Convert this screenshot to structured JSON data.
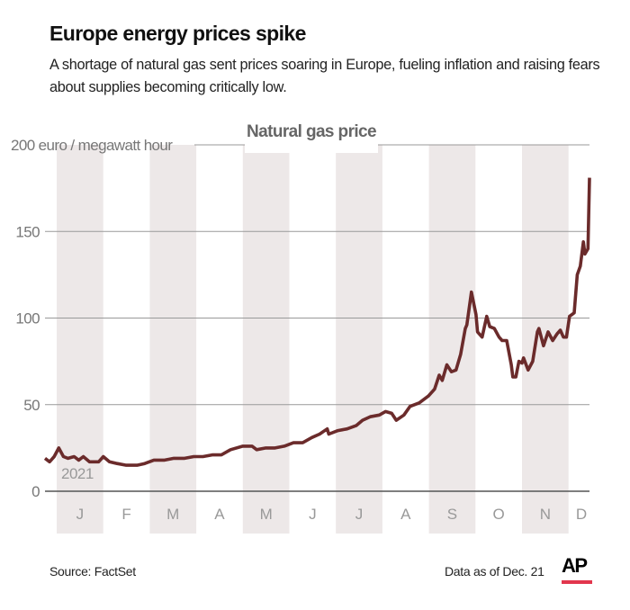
{
  "header": {
    "title": "Europe energy prices spike",
    "subtitle": "A shortage of natural gas sent prices soaring in Europe, fueling inflation and raising fears about supplies becoming critically low."
  },
  "footer": {
    "source": "Source: FactSet",
    "as_of": "Data as of Dec. 21",
    "logo": "AP"
  },
  "colors": {
    "line": "#6b2b2b",
    "band": "#ede8e8",
    "grid": "#999999",
    "text": "#777777",
    "logo_bar": "#e2364d"
  },
  "chart_data": {
    "type": "line",
    "title": "Natural gas price",
    "ylabel": "euro / megawatt hour",
    "y_ticks": [
      "200 euro / megawatt hour",
      "150",
      "100",
      "50",
      "0"
    ],
    "y_tick_values": [
      200,
      150,
      100,
      50,
      0
    ],
    "ylim": [
      0,
      200
    ],
    "xlim_days": [
      0,
      355
    ],
    "year_label": "2021",
    "months": [
      "J",
      "F",
      "M",
      "A",
      "M",
      "J",
      "J",
      "A",
      "S",
      "O",
      "N",
      "D"
    ],
    "shaded_months": [
      0,
      2,
      4,
      6,
      8,
      10
    ],
    "grid": true,
    "series": [
      {
        "name": "Natural gas price",
        "x_day_of_year": [
          0,
          3,
          6,
          9,
          12,
          15,
          19,
          22,
          25,
          29,
          35,
          38,
          42,
          47,
          53,
          60,
          65,
          71,
          78,
          84,
          91,
          97,
          103,
          109,
          115,
          121,
          129,
          135,
          138,
          144,
          150,
          156,
          162,
          168,
          174,
          179,
          184,
          185,
          191,
          197,
          203,
          207,
          212,
          218,
          222,
          226,
          229,
          234,
          238,
          244,
          250,
          254,
          257,
          259,
          262,
          265,
          268,
          271,
          274,
          275,
          278,
          281,
          282,
          285,
          288,
          290,
          293,
          296,
          298,
          301,
          304,
          305,
          307,
          309,
          311,
          312,
          315,
          318,
          321,
          322,
          325,
          328,
          331,
          334,
          336,
          338,
          340,
          342,
          345,
          347,
          349,
          351,
          352,
          354,
          355
        ],
        "values": [
          19,
          17,
          20,
          25,
          20,
          19,
          20,
          18,
          20,
          17,
          17,
          20,
          17,
          16,
          15,
          15,
          16,
          18,
          18,
          19,
          19,
          20,
          20,
          21,
          21,
          24,
          26,
          26,
          24,
          25,
          25,
          26,
          28,
          28,
          31,
          33,
          36,
          33,
          35,
          36,
          38,
          41,
          43,
          44,
          46,
          45,
          41,
          44,
          49,
          51,
          55,
          59,
          67,
          64,
          73,
          69,
          70,
          79,
          94,
          96,
          115,
          102,
          92,
          89,
          101,
          95,
          94,
          89,
          87,
          87,
          73,
          66,
          66,
          75,
          74,
          77,
          70,
          75,
          92,
          94,
          84,
          92,
          87,
          91,
          93,
          89,
          89,
          101,
          103,
          125,
          130,
          144,
          137,
          140,
          181
        ]
      }
    ]
  }
}
